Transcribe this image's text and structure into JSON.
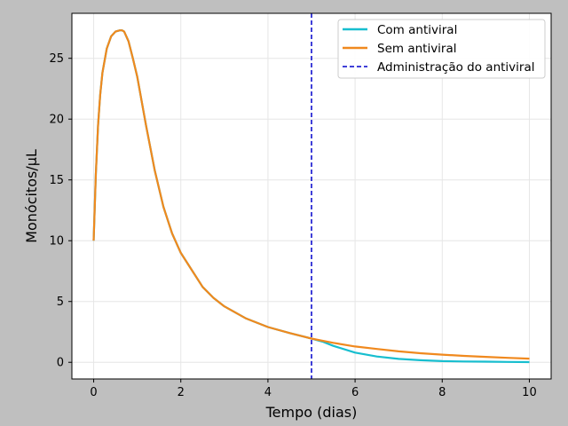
{
  "chart_data": {
    "type": "line",
    "xlabel": "Tempo (dias)",
    "ylabel": "Monócitos/µL",
    "xlim": [
      -0.5,
      10.5
    ],
    "ylim": [
      -1.37,
      28.7
    ],
    "xticks": [
      0,
      2,
      4,
      6,
      8,
      10
    ],
    "yticks": [
      0,
      5,
      10,
      15,
      20,
      25
    ],
    "grid": true,
    "legend_position": "top-right",
    "series": [
      {
        "name": "Com antiviral",
        "color": "#17becf",
        "x": [
          0,
          0.05,
          0.1,
          0.15,
          0.2,
          0.3,
          0.4,
          0.5,
          0.6,
          0.65,
          0.7,
          0.8,
          0.9,
          1.0,
          1.2,
          1.4,
          1.6,
          1.8,
          2.0,
          2.25,
          2.5,
          2.75,
          3.0,
          3.5,
          4.0,
          4.5,
          5.0,
          5.25,
          5.5,
          6.0,
          6.5,
          7.0,
          7.5,
          8.0,
          8.5,
          9.0,
          9.5,
          10.0
        ],
        "y": [
          10,
          15.5,
          19.5,
          22.0,
          23.8,
          25.8,
          26.8,
          27.2,
          27.3,
          27.3,
          27.2,
          26.4,
          25.0,
          23.5,
          19.5,
          15.8,
          12.8,
          10.6,
          9.0,
          7.6,
          6.2,
          5.3,
          4.6,
          3.6,
          2.9,
          2.4,
          1.95,
          1.7,
          1.35,
          0.8,
          0.48,
          0.28,
          0.17,
          0.1,
          0.07,
          0.05,
          0.03,
          0.02
        ]
      },
      {
        "name": "Sem antiviral",
        "color": "#f0891e",
        "x": [
          0,
          0.05,
          0.1,
          0.15,
          0.2,
          0.3,
          0.4,
          0.5,
          0.6,
          0.65,
          0.7,
          0.8,
          0.9,
          1.0,
          1.2,
          1.4,
          1.6,
          1.8,
          2.0,
          2.25,
          2.5,
          2.75,
          3.0,
          3.5,
          4.0,
          4.5,
          5.0,
          5.5,
          6.0,
          6.5,
          7.0,
          7.5,
          8.0,
          8.5,
          9.0,
          9.5,
          10.0
        ],
        "y": [
          10,
          15.5,
          19.5,
          22.0,
          23.8,
          25.8,
          26.8,
          27.2,
          27.3,
          27.3,
          27.2,
          26.4,
          25.0,
          23.5,
          19.5,
          15.8,
          12.8,
          10.6,
          9.0,
          7.6,
          6.2,
          5.3,
          4.6,
          3.6,
          2.9,
          2.4,
          1.95,
          1.6,
          1.3,
          1.1,
          0.9,
          0.75,
          0.63,
          0.53,
          0.45,
          0.37,
          0.3
        ]
      }
    ],
    "vertical_line": {
      "name": "Administração do antiviral",
      "x": 5,
      "color": "#0000cc",
      "style": "dashed"
    }
  }
}
